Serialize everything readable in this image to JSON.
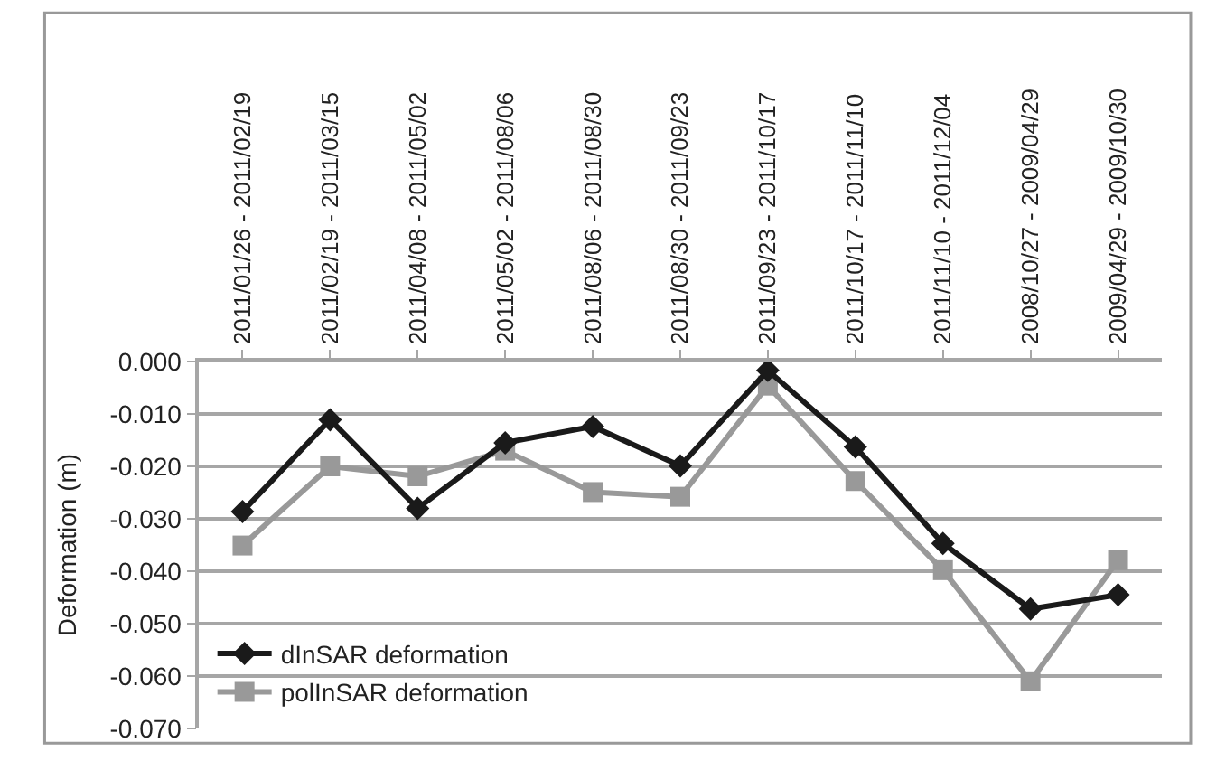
{
  "chart_data": {
    "type": "line",
    "ylabel": "Deformation (m)",
    "categories": [
      "2011/01/26 - 2011/02/19",
      "2011/02/19 - 2011/03/15",
      "2011/04/08 - 2011/05/02",
      "2011/05/02 - 2011/08/06",
      "2011/08/06 - 2011/08/30",
      "2011/08/30 - 2011/09/23",
      "2011/09/23 - 2011/10/17",
      "2011/10/17 - 2011/11/10",
      "2011/11/10 - 2011/12/04",
      "2008/10/27 - 2009/04/29",
      "2009/04/29 - 2009/10/30"
    ],
    "series": [
      {
        "name": "dInSAR deformation",
        "color": "#1a1a1a",
        "marker": "diamond",
        "values": [
          -0.0286,
          -0.0111,
          -0.028,
          -0.0155,
          -0.0124,
          -0.0199,
          -0.0017,
          -0.0163,
          -0.0347,
          -0.0472,
          -0.0445
        ]
      },
      {
        "name": "polInSAR deformation",
        "color": "#999999",
        "marker": "square",
        "values": [
          -0.0351,
          -0.02,
          -0.0219,
          -0.017,
          -0.0249,
          -0.0258,
          -0.0046,
          -0.0228,
          -0.0398,
          -0.061,
          -0.0379
        ]
      }
    ],
    "ylim": [
      -0.07,
      0.0
    ],
    "yticks": [
      {
        "value": 0.0,
        "label": "0.000"
      },
      {
        "value": -0.01,
        "label": "-0.010"
      },
      {
        "value": -0.02,
        "label": "-0.020"
      },
      {
        "value": -0.03,
        "label": "-0.030"
      },
      {
        "value": -0.04,
        "label": "-0.040"
      },
      {
        "value": -0.05,
        "label": "-0.050"
      },
      {
        "value": -0.06,
        "label": "-0.060"
      },
      {
        "value": -0.07,
        "label": "-0.070"
      }
    ],
    "grid": "y",
    "legend": "bottom left"
  }
}
